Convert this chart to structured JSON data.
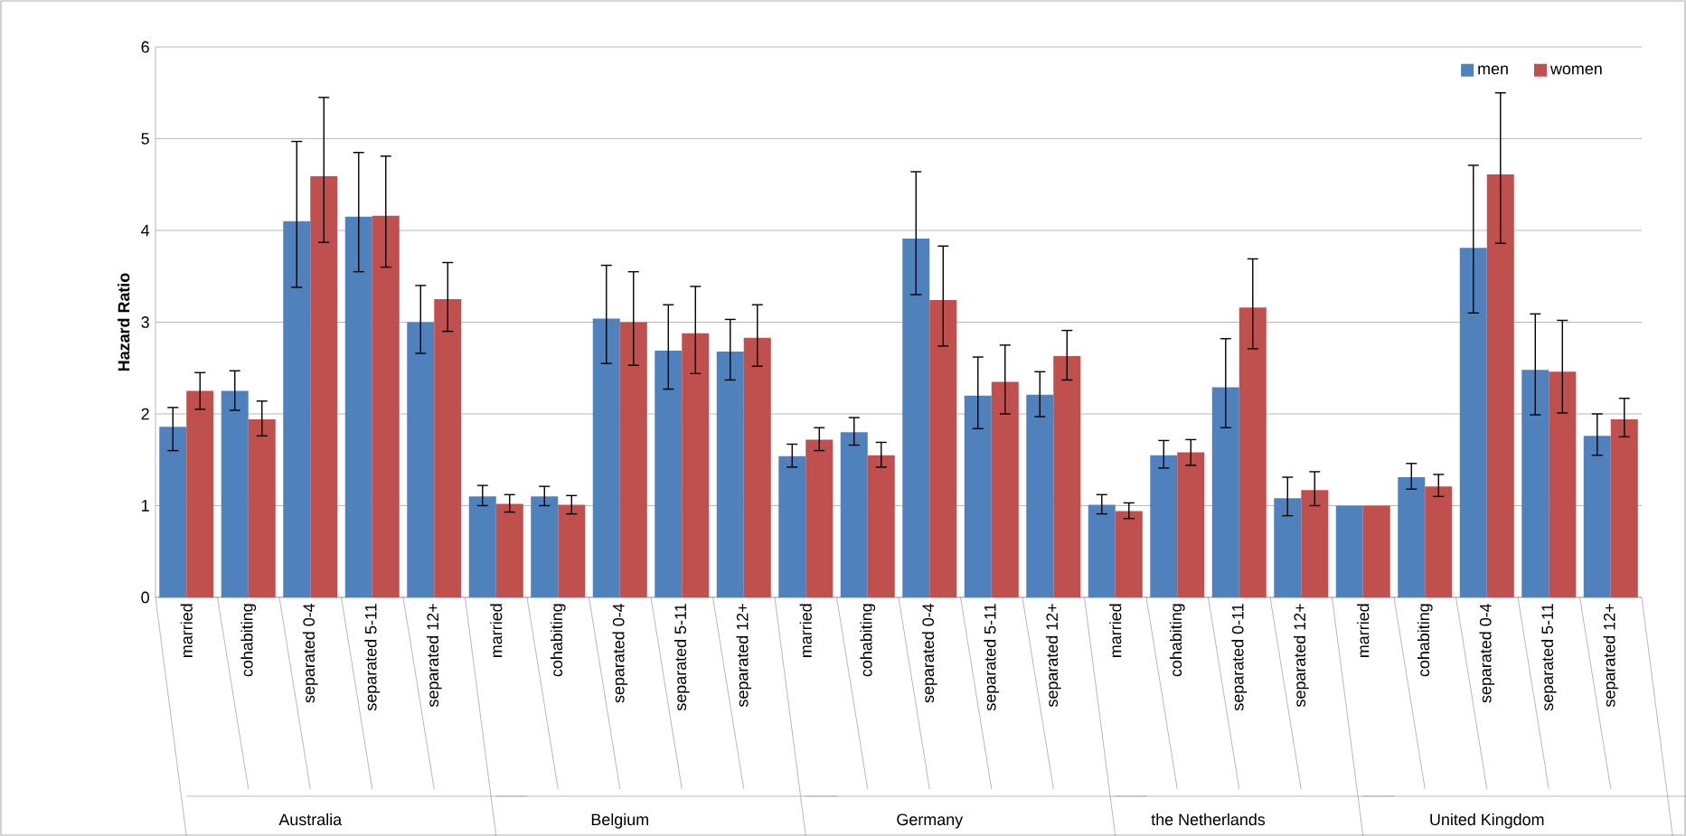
{
  "chart_data": {
    "type": "bar",
    "ylabel": "Hazard Ratio",
    "categories": [
      "married",
      "cohabiting",
      "separated 0-4",
      "separated 5-11",
      "separated 12+",
      "married",
      "cohabiting",
      "separated 0-4",
      "separated 5-11",
      "separated 12+",
      "married",
      "cohabiting",
      "separated 0-4",
      "separated 5-11",
      "separated 12+",
      "married",
      "cohabiting",
      "separated 0-11",
      "separated 12+",
      "married",
      "cohabiting",
      "separated 0-4",
      "separated 5-11",
      "separated 12+"
    ],
    "annotations": [
      "Australia",
      "Belgium",
      "Germany",
      "the Netherlands",
      "United Kingdom"
    ],
    "series": [
      {
        "name": "men",
        "color": "#4f81bd",
        "values": [
          1.86,
          2.25,
          4.1,
          4.15,
          3.0,
          1.1,
          1.1,
          3.04,
          2.69,
          2.68,
          1.54,
          1.8,
          3.91,
          2.2,
          2.21,
          1.01,
          1.55,
          2.29,
          1.08,
          1.0,
          1.31,
          3.81,
          2.48,
          1.76
        ],
        "errors": [
          [
            1.6,
            2.07
          ],
          [
            2.04,
            2.47
          ],
          [
            3.38,
            4.97
          ],
          [
            3.55,
            4.85
          ],
          [
            2.66,
            3.4
          ],
          [
            1.0,
            1.22
          ],
          [
            1.0,
            1.21
          ],
          [
            2.55,
            3.62
          ],
          [
            2.27,
            3.19
          ],
          [
            2.37,
            3.03
          ],
          [
            1.42,
            1.67
          ],
          [
            1.66,
            1.96
          ],
          [
            3.3,
            4.64
          ],
          [
            1.84,
            2.62
          ],
          [
            1.97,
            2.46
          ],
          [
            0.91,
            1.12
          ],
          [
            1.41,
            1.71
          ],
          [
            1.85,
            2.82
          ],
          [
            0.89,
            1.31
          ],
          null,
          [
            1.18,
            1.46
          ],
          [
            3.1,
            4.71
          ],
          [
            1.99,
            3.09
          ],
          [
            1.55,
            2.0
          ]
        ]
      },
      {
        "name": "women",
        "color": "#c0504d",
        "values": [
          2.25,
          1.94,
          4.59,
          4.16,
          3.25,
          1.02,
          1.01,
          3.0,
          2.88,
          2.83,
          1.72,
          1.55,
          3.24,
          2.35,
          2.63,
          0.94,
          1.58,
          3.16,
          1.17,
          1.0,
          1.21,
          4.61,
          2.46,
          1.94
        ],
        "errors": [
          [
            2.05,
            2.45
          ],
          [
            1.76,
            2.14
          ],
          [
            3.87,
            5.45
          ],
          [
            3.6,
            4.81
          ],
          [
            2.9,
            3.65
          ],
          [
            0.93,
            1.12
          ],
          [
            0.91,
            1.11
          ],
          [
            2.53,
            3.55
          ],
          [
            2.44,
            3.39
          ],
          [
            2.52,
            3.19
          ],
          [
            1.6,
            1.85
          ],
          [
            1.42,
            1.69
          ],
          [
            2.74,
            3.83
          ],
          [
            2.0,
            2.75
          ],
          [
            2.37,
            2.91
          ],
          [
            0.86,
            1.03
          ],
          [
            1.44,
            1.72
          ],
          [
            2.71,
            3.69
          ],
          [
            1.0,
            1.37
          ],
          null,
          [
            1.1,
            1.34
          ],
          [
            3.86,
            5.5
          ],
          [
            2.01,
            3.02
          ],
          [
            1.75,
            2.17
          ]
        ]
      }
    ],
    "ylim": [
      0,
      6
    ],
    "yticks": [
      0,
      1,
      2,
      3,
      4,
      5,
      6
    ],
    "grid": "y",
    "legend": "top right"
  }
}
